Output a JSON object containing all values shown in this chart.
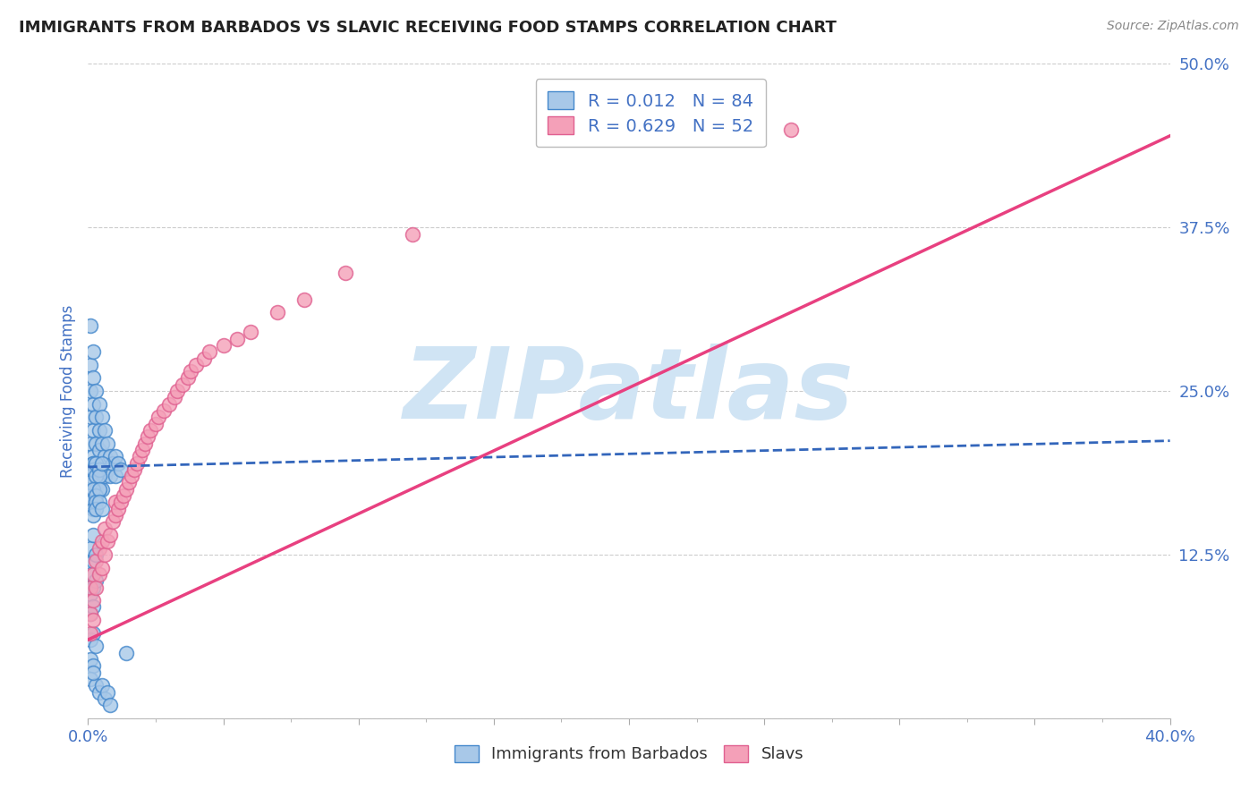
{
  "title": "IMMIGRANTS FROM BARBADOS VS SLAVIC RECEIVING FOOD STAMPS CORRELATION CHART",
  "source": "Source: ZipAtlas.com",
  "ylabel": "Receiving Food Stamps",
  "xlim": [
    0.0,
    0.4
  ],
  "ylim": [
    0.0,
    0.5
  ],
  "yticks": [
    0.0,
    0.125,
    0.25,
    0.375,
    0.5
  ],
  "yticklabels": [
    "",
    "12.5%",
    "25.0%",
    "37.5%",
    "50.0%"
  ],
  "legend_barbados_R": "R = 0.012",
  "legend_barbados_N": "N = 84",
  "legend_slavs_R": "R = 0.629",
  "legend_slavs_N": "N = 52",
  "color_barbados_fill": "#a8c8e8",
  "color_barbados_edge": "#4488cc",
  "color_slavs_fill": "#f4a0b8",
  "color_slavs_edge": "#e06090",
  "color_trend_barbados": "#3366bb",
  "color_trend_slavs": "#e84080",
  "color_tick_labels": "#4472c4",
  "color_ylabel": "#4472c4",
  "color_source": "#888888",
  "watermark": "ZIPatlas",
  "watermark_color": "#d0e4f4",
  "background_color": "#ffffff",
  "grid_color": "#cccccc",
  "barbados_x": [
    0.001,
    0.001,
    0.001,
    0.001,
    0.001,
    0.002,
    0.002,
    0.002,
    0.002,
    0.002,
    0.002,
    0.002,
    0.003,
    0.003,
    0.003,
    0.003,
    0.003,
    0.003,
    0.003,
    0.004,
    0.004,
    0.004,
    0.004,
    0.004,
    0.005,
    0.005,
    0.005,
    0.005,
    0.006,
    0.006,
    0.006,
    0.007,
    0.007,
    0.008,
    0.008,
    0.009,
    0.01,
    0.01,
    0.011,
    0.012,
    0.001,
    0.001,
    0.001,
    0.002,
    0.002,
    0.003,
    0.003,
    0.004,
    0.004,
    0.005,
    0.001,
    0.002,
    0.002,
    0.003,
    0.003,
    0.004,
    0.002,
    0.003,
    0.004,
    0.005,
    0.001,
    0.002,
    0.001,
    0.002,
    0.003,
    0.001,
    0.002,
    0.003,
    0.001,
    0.002,
    0.001,
    0.002,
    0.001,
    0.003,
    0.002,
    0.001,
    0.003,
    0.002,
    0.004,
    0.005,
    0.006,
    0.007,
    0.008,
    0.014
  ],
  "barbados_y": [
    0.3,
    0.27,
    0.25,
    0.23,
    0.21,
    0.28,
    0.26,
    0.24,
    0.22,
    0.2,
    0.195,
    0.18,
    0.25,
    0.23,
    0.21,
    0.195,
    0.185,
    0.175,
    0.165,
    0.24,
    0.22,
    0.205,
    0.19,
    0.175,
    0.23,
    0.21,
    0.195,
    0.175,
    0.22,
    0.2,
    0.185,
    0.21,
    0.19,
    0.2,
    0.185,
    0.195,
    0.2,
    0.185,
    0.195,
    0.19,
    0.19,
    0.185,
    0.18,
    0.195,
    0.19,
    0.185,
    0.195,
    0.19,
    0.185,
    0.195,
    0.165,
    0.175,
    0.16,
    0.17,
    0.165,
    0.175,
    0.155,
    0.16,
    0.165,
    0.16,
    0.13,
    0.14,
    0.11,
    0.12,
    0.125,
    0.095,
    0.1,
    0.105,
    0.08,
    0.085,
    0.06,
    0.065,
    0.045,
    0.055,
    0.04,
    0.03,
    0.025,
    0.035,
    0.02,
    0.025,
    0.015,
    0.02,
    0.01,
    0.05
  ],
  "slavs_x": [
    0.001,
    0.001,
    0.001,
    0.002,
    0.002,
    0.002,
    0.003,
    0.003,
    0.004,
    0.004,
    0.005,
    0.005,
    0.006,
    0.006,
    0.007,
    0.008,
    0.009,
    0.01,
    0.01,
    0.011,
    0.012,
    0.013,
    0.014,
    0.015,
    0.016,
    0.017,
    0.018,
    0.019,
    0.02,
    0.021,
    0.022,
    0.023,
    0.025,
    0.026,
    0.028,
    0.03,
    0.032,
    0.033,
    0.035,
    0.037,
    0.038,
    0.04,
    0.043,
    0.045,
    0.05,
    0.055,
    0.06,
    0.07,
    0.08,
    0.095,
    0.12,
    0.26
  ],
  "slavs_y": [
    0.08,
    0.1,
    0.065,
    0.09,
    0.11,
    0.075,
    0.1,
    0.12,
    0.11,
    0.13,
    0.115,
    0.135,
    0.125,
    0.145,
    0.135,
    0.14,
    0.15,
    0.155,
    0.165,
    0.16,
    0.165,
    0.17,
    0.175,
    0.18,
    0.185,
    0.19,
    0.195,
    0.2,
    0.205,
    0.21,
    0.215,
    0.22,
    0.225,
    0.23,
    0.235,
    0.24,
    0.245,
    0.25,
    0.255,
    0.26,
    0.265,
    0.27,
    0.275,
    0.28,
    0.285,
    0.29,
    0.295,
    0.31,
    0.32,
    0.34,
    0.37,
    0.45
  ],
  "barbados_trend_x": [
    0.0,
    0.4
  ],
  "barbados_trend_y": [
    0.192,
    0.212
  ],
  "slavs_trend_x": [
    0.0,
    0.4
  ],
  "slavs_trend_y": [
    0.06,
    0.445
  ]
}
